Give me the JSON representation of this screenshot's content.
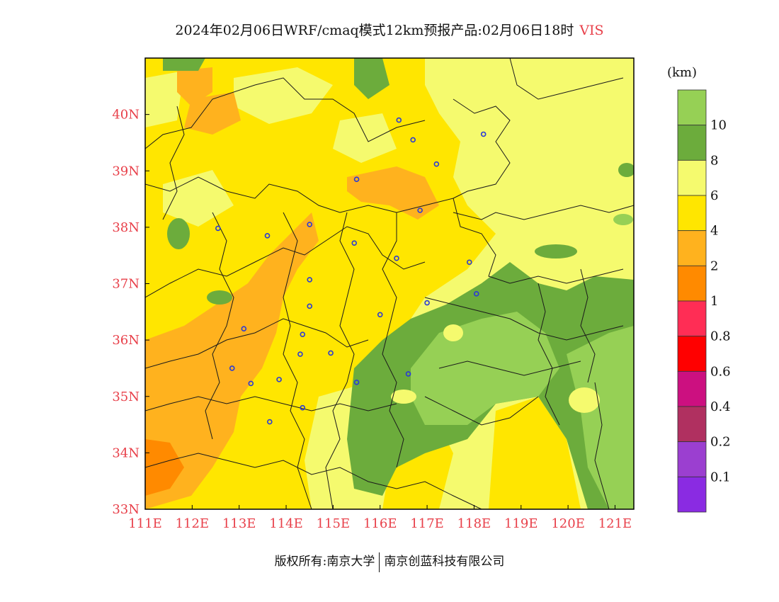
{
  "header": {
    "title": "2024年02月06日WRF/cmaq模式12km预报产品:02月06日18时",
    "variable": "VIS"
  },
  "footer": {
    "left": "版权所有:南京大学",
    "right": "南京创蓝科技有限公司"
  },
  "map": {
    "lon_range": [
      111,
      121.4
    ],
    "lat_range": [
      33,
      41
    ],
    "lon_ticks": [
      "111E",
      "112E",
      "113E",
      "114E",
      "115E",
      "116E",
      "117E",
      "118E",
      "119E",
      "120E",
      "121E"
    ],
    "lat_ticks": [
      "33N",
      "34N",
      "35N",
      "36N",
      "37N",
      "38N",
      "39N",
      "40N"
    ],
    "stations": [
      [
        116.4,
        39.9
      ],
      [
        116.7,
        39.55
      ],
      [
        118.2,
        39.65
      ],
      [
        117.2,
        39.12
      ],
      [
        115.5,
        38.85
      ],
      [
        116.85,
        38.3
      ],
      [
        112.55,
        37.98
      ],
      [
        113.6,
        37.85
      ],
      [
        114.5,
        38.05
      ],
      [
        115.45,
        37.72
      ],
      [
        116.35,
        37.45
      ],
      [
        117.9,
        37.38
      ],
      [
        114.5,
        37.07
      ],
      [
        114.5,
        36.6
      ],
      [
        116.0,
        36.45
      ],
      [
        117.0,
        36.66
      ],
      [
        118.05,
        36.82
      ],
      [
        113.1,
        36.2
      ],
      [
        114.35,
        36.1
      ],
      [
        114.3,
        35.75
      ],
      [
        114.95,
        35.77
      ],
      [
        112.85,
        35.5
      ],
      [
        113.25,
        35.23
      ],
      [
        113.85,
        35.3
      ],
      [
        115.5,
        35.25
      ],
      [
        116.6,
        35.4
      ],
      [
        114.35,
        34.8
      ],
      [
        113.65,
        34.55
      ]
    ]
  },
  "legend": {
    "unit": "(km)",
    "labels": [
      "10",
      "8",
      "6",
      "4",
      "2",
      "1",
      "0.8",
      "0.6",
      "0.4",
      "0.2",
      "0.1"
    ],
    "colors": [
      "#96d055",
      "#6cac3c",
      "#f5fa6e",
      "#ffe600",
      "#ffb21e",
      "#ff8a00",
      "#ff2d55",
      "#ff0000",
      "#cc1080",
      "#b03060",
      "#9b3fd0",
      "#8a2be2"
    ]
  }
}
